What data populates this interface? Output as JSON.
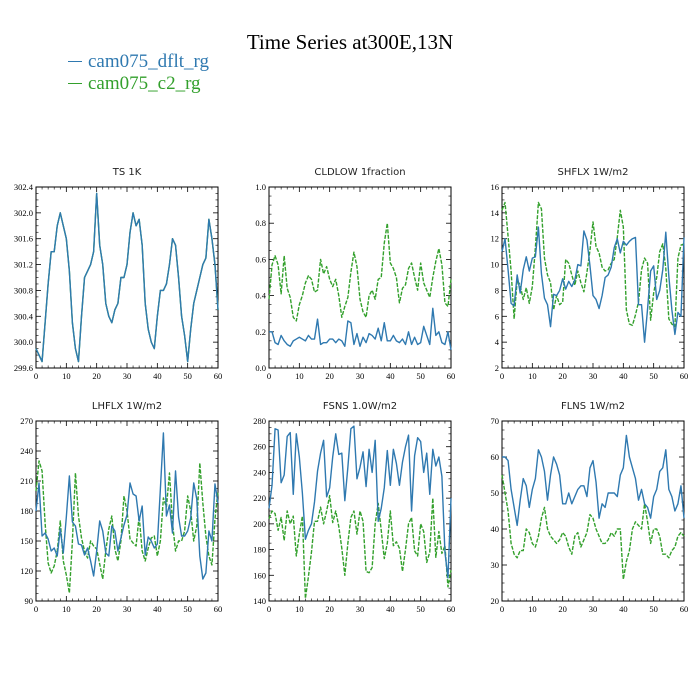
{
  "title": "Time Series at300E,13N",
  "legend": [
    {
      "label": "cam075_dflt_rg",
      "color": "#2f79b0"
    },
    {
      "label": "cam075_c2_rg",
      "color": "#33a02c"
    }
  ],
  "chart_data": [
    {
      "type": "line",
      "title": "TS   1K",
      "xlim": [
        0,
        60
      ],
      "ylim": [
        299.6,
        302.4
      ],
      "xticks": [
        0,
        10,
        20,
        30,
        40,
        50,
        60
      ],
      "yticks": [
        "299.6",
        "300.0",
        "300.4",
        "300.8",
        "301.2",
        "301.6",
        "302.0",
        "302.4"
      ],
      "series": [
        {
          "name": "cam075_dflt_rg",
          "x_start": 0,
          "values": [
            299.9,
            299.8,
            299.7,
            300.3,
            300.9,
            301.4,
            301.4,
            301.8,
            302.0,
            301.8,
            301.6,
            301.1,
            300.3,
            299.9,
            299.7,
            300.4,
            301.0,
            301.1,
            301.2,
            301.4,
            302.3,
            301.5,
            301.2,
            300.6,
            300.4,
            300.3,
            300.5,
            300.6,
            301.0,
            301.0,
            301.2,
            301.7,
            302.0,
            301.8,
            301.9,
            301.5,
            300.6,
            300.2,
            300.0,
            299.9,
            300.4,
            300.8,
            300.8,
            300.9,
            301.2,
            301.6,
            301.5,
            301.0,
            300.4,
            300.1,
            299.7,
            300.2,
            300.6,
            300.8,
            301.0,
            301.2,
            301.3,
            301.9,
            301.6,
            301.2,
            300.5
          ]
        },
        {
          "name": "cam075_c2_rg",
          "x_start": 0,
          "values": [
            299.9,
            299.8,
            299.7,
            300.3,
            300.9,
            301.4,
            301.4,
            301.8,
            302.0,
            301.8,
            301.6,
            301.1,
            300.3,
            299.9,
            299.7,
            300.4,
            301.0,
            301.1,
            301.2,
            301.4,
            302.3,
            301.5,
            301.2,
            300.6,
            300.4,
            300.3,
            300.5,
            300.6,
            301.0,
            301.0,
            301.2,
            301.7,
            302.0,
            301.8,
            301.9,
            301.5,
            300.6,
            300.2,
            300.0,
            299.9,
            300.4,
            300.8,
            300.8,
            300.9,
            301.2,
            301.6,
            301.5,
            301.0,
            300.4,
            300.1,
            299.7,
            300.2,
            300.6,
            300.8,
            301.0,
            301.2,
            301.3,
            301.9,
            301.6,
            301.2,
            300.5
          ]
        }
      ]
    },
    {
      "type": "line",
      "title": "CLDLOW   1fraction",
      "xlim": [
        0,
        60
      ],
      "ylim": [
        0,
        1
      ],
      "xticks": [
        0,
        10,
        20,
        30,
        40,
        50,
        60
      ],
      "yticks": [
        "0.0",
        "0.2",
        "0.4",
        "0.6",
        "0.8",
        "1.0"
      ],
      "series": [
        {
          "name": "cam075_dflt_rg",
          "x_start": 0,
          "values": [
            0.2,
            0.2,
            0.14,
            0.13,
            0.18,
            0.15,
            0.13,
            0.12,
            0.15,
            0.16,
            0.17,
            0.16,
            0.15,
            0.18,
            0.16,
            0.16,
            0.27,
            0.13,
            0.14,
            0.14,
            0.16,
            0.16,
            0.14,
            0.16,
            0.15,
            0.12,
            0.26,
            0.25,
            0.13,
            0.19,
            0.12,
            0.17,
            0.14,
            0.19,
            0.18,
            0.16,
            0.22,
            0.15,
            0.25,
            0.15,
            0.15,
            0.18,
            0.15,
            0.14,
            0.16,
            0.13,
            0.2,
            0.13,
            0.17,
            0.13,
            0.14,
            0.23,
            0.18,
            0.13,
            0.33,
            0.18,
            0.2,
            0.14,
            0.13,
            0.2,
            0.1
          ]
        },
        {
          "name": "cam075_c2_rg",
          "x_start": 0,
          "values": [
            0.38,
            0.57,
            0.62,
            0.57,
            0.41,
            0.62,
            0.44,
            0.39,
            0.28,
            0.26,
            0.35,
            0.4,
            0.47,
            0.51,
            0.49,
            0.42,
            0.43,
            0.6,
            0.52,
            0.56,
            0.49,
            0.45,
            0.49,
            0.4,
            0.28,
            0.34,
            0.39,
            0.53,
            0.64,
            0.56,
            0.38,
            0.31,
            0.28,
            0.4,
            0.43,
            0.38,
            0.49,
            0.5,
            0.69,
            0.8,
            0.58,
            0.55,
            0.5,
            0.36,
            0.44,
            0.46,
            0.55,
            0.58,
            0.5,
            0.43,
            0.58,
            0.47,
            0.43,
            0.39,
            0.5,
            0.59,
            0.66,
            0.57,
            0.36,
            0.34,
            0.49
          ]
        }
      ]
    },
    {
      "type": "line",
      "title": "SHFLX   1W/m2",
      "xlim": [
        0,
        60
      ],
      "ylim": [
        2,
        16
      ],
      "xticks": [
        0,
        10,
        20,
        30,
        40,
        50,
        60
      ],
      "yticks": [
        "2",
        "4",
        "6",
        "8",
        "10",
        "12",
        "14",
        "16"
      ],
      "series": [
        {
          "name": "cam075_dflt_rg",
          "x_start": 0,
          "values": [
            11.0,
            12.0,
            9.6,
            7.0,
            6.8,
            9.2,
            7.8,
            9.6,
            10.6,
            9.5,
            10.5,
            10.6,
            12.9,
            9.3,
            7.4,
            6.9,
            5.2,
            7.7,
            7.6,
            8.0,
            8.9,
            8.1,
            8.7,
            8.3,
            8.8,
            10.0,
            9.9,
            12.6,
            11.9,
            9.9,
            7.6,
            7.3,
            6.6,
            7.6,
            9.0,
            9.2,
            9.8,
            11.3,
            12.0,
            10.9,
            11.8,
            11.5,
            11.8,
            12.0,
            12.1,
            6.9,
            6.9,
            4.0,
            6.6,
            9.5,
            9.9,
            7.3,
            8.0,
            9.6,
            12.5,
            9.1,
            6.5,
            4.6,
            6.3,
            6.0,
            12.1
          ]
        },
        {
          "name": "cam075_c2_rg",
          "x_start": 0,
          "values": [
            14.2,
            14.8,
            12.2,
            9.5,
            5.8,
            8.8,
            8.4,
            7.3,
            8.2,
            7.0,
            8.3,
            11.3,
            14.8,
            14.3,
            10.5,
            9.2,
            8.6,
            6.5,
            7.6,
            6.9,
            7.1,
            10.4,
            10.1,
            9.2,
            8.4,
            9.5,
            8.6,
            7.9,
            9.4,
            11.1,
            13.3,
            11.4,
            10.9,
            9.8,
            9.5,
            9.6,
            10.1,
            10.4,
            12.1,
            14.2,
            12.9,
            6.5,
            5.4,
            5.3,
            6.1,
            7.1,
            9.6,
            10.5,
            10.1,
            5.7,
            7.8,
            9.0,
            11.0,
            11.6,
            9.7,
            5.8,
            5.4,
            5.2,
            10.5,
            11.5,
            11.6
          ]
        }
      ]
    },
    {
      "type": "line",
      "title": "LHFLX   1W/m2",
      "xlim": [
        0,
        60
      ],
      "ylim": [
        90,
        270
      ],
      "xticks": [
        0,
        10,
        20,
        30,
        40,
        50,
        60
      ],
      "yticks": [
        "90",
        "120",
        "150",
        "180",
        "210",
        "240",
        "270"
      ],
      "series": [
        {
          "name": "cam075_dflt_rg",
          "x_start": 0,
          "values": [
            180,
            208,
            155,
            158,
            152,
            140,
            143,
            135,
            162,
            138,
            174,
            215,
            169,
            165,
            147,
            146,
            136,
            143,
            130,
            115,
            140,
            170,
            160,
            138,
            135,
            165,
            160,
            140,
            153,
            166,
            176,
            208,
            197,
            195,
            170,
            185,
            136,
            154,
            150,
            143,
            147,
            202,
            258,
            175,
            186,
            158,
            220,
            174,
            155,
            155,
            160,
            173,
            208,
            192,
            135,
            112,
            118,
            160,
            150,
            207,
            188
          ]
        },
        {
          "name": "cam075_c2_rg",
          "x_start": 0,
          "values": [
            200,
            230,
            220,
            168,
            128,
            118,
            125,
            140,
            170,
            130,
            116,
            98,
            150,
            218,
            175,
            153,
            140,
            133,
            150,
            145,
            142,
            127,
            112,
            140,
            162,
            175,
            142,
            130,
            150,
            195,
            180,
            152,
            148,
            145,
            175,
            140,
            130,
            143,
            153,
            155,
            135,
            150,
            193,
            184,
            218,
            168,
            140,
            150,
            150,
            160,
            195,
            180,
            150,
            165,
            228,
            188,
            155,
            135,
            126,
            172,
            200
          ]
        }
      ]
    },
    {
      "type": "line",
      "title": "FSNS   1.0W/m2",
      "xlim": [
        0,
        60
      ],
      "ylim": [
        140,
        280
      ],
      "xticks": [
        0,
        10,
        20,
        30,
        40,
        50,
        60
      ],
      "yticks": [
        "140",
        "160",
        "180",
        "200",
        "220",
        "240",
        "260",
        "280"
      ],
      "series": [
        {
          "name": "cam075_dflt_rg",
          "x_start": 0,
          "values": [
            212,
            230,
            274,
            273,
            232,
            238,
            268,
            271,
            223,
            270,
            252,
            224,
            188,
            195,
            200,
            217,
            241,
            255,
            265,
            221,
            228,
            252,
            270,
            254,
            255,
            218,
            244,
            274,
            276,
            235,
            244,
            256,
            229,
            258,
            240,
            265,
            202,
            212,
            228,
            257,
            230,
            258,
            247,
            230,
            248,
            260,
            269,
            210,
            253,
            267,
            264,
            240,
            255,
            223,
            258,
            245,
            252,
            237,
            178,
            158,
            220
          ]
        },
        {
          "name": "cam075_c2_rg",
          "x_start": 0,
          "values": [
            204,
            210,
            208,
            195,
            205,
            187,
            210,
            200,
            206,
            175,
            192,
            206,
            142,
            159,
            178,
            202,
            202,
            213,
            200,
            210,
            222,
            201,
            210,
            198,
            181,
            160,
            185,
            205,
            210,
            192,
            210,
            202,
            163,
            162,
            166,
            200,
            216,
            195,
            173,
            185,
            210,
            183,
            186,
            181,
            163,
            180,
            200,
            205,
            179,
            175,
            200,
            194,
            170,
            178,
            220,
            174,
            194,
            177,
            183,
            151,
            164
          ]
        }
      ]
    },
    {
      "type": "line",
      "title": "FLNS   1W/m2",
      "xlim": [
        0,
        60
      ],
      "ylim": [
        20,
        70
      ],
      "xticks": [
        0,
        10,
        20,
        30,
        40,
        50,
        60
      ],
      "yticks": [
        "20",
        "30",
        "40",
        "50",
        "60",
        "70"
      ],
      "series": [
        {
          "name": "cam075_dflt_rg",
          "x_start": 0,
          "values": [
            60,
            60,
            59,
            51,
            46,
            41,
            48,
            54,
            52,
            46,
            51,
            54,
            62,
            60,
            56,
            48,
            55,
            60,
            58,
            55,
            47,
            47,
            50,
            47,
            49,
            51,
            52,
            52,
            49,
            57,
            59,
            53,
            43,
            47,
            46,
            50,
            50,
            50,
            49,
            55,
            57,
            66,
            60,
            57,
            54,
            48,
            51,
            47,
            46,
            43,
            49,
            51,
            56,
            57,
            62,
            51,
            49,
            45,
            47,
            52,
            43
          ]
        },
        {
          "name": "cam075_c2_rg",
          "x_start": 0,
          "values": [
            55,
            50,
            45,
            36,
            33,
            32,
            34,
            34,
            40,
            39,
            36,
            35,
            38,
            43,
            46,
            40,
            38,
            37,
            36,
            37,
            39,
            38,
            35,
            33,
            38,
            39,
            35,
            37,
            39,
            44,
            43,
            40,
            38,
            36,
            36,
            37,
            39,
            38,
            40,
            40,
            26,
            31,
            34,
            40,
            42,
            41,
            40,
            47,
            42,
            36,
            40,
            40,
            38,
            33,
            33,
            32,
            34,
            35,
            38,
            39,
            38
          ]
        }
      ]
    }
  ]
}
